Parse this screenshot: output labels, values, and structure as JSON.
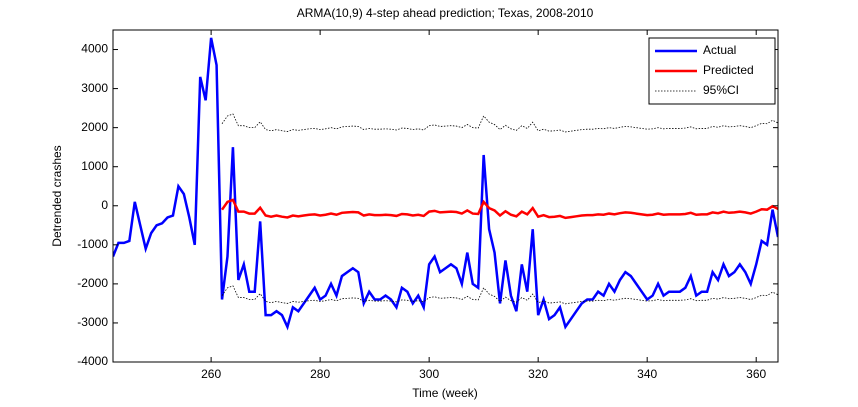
{
  "chart_data": {
    "type": "line",
    "title": "ARMA(10,9) 4-step ahead prediction; Texas, 2008-2010",
    "xlabel": "Time (week)",
    "ylabel": "Detrended crashes",
    "xlim": [
      242,
      364
    ],
    "ylim": [
      -4000,
      4500
    ],
    "xticks": [
      260,
      280,
      300,
      320,
      340,
      360
    ],
    "yticks": [
      -4000,
      -3000,
      -2000,
      -1000,
      0,
      1000,
      2000,
      3000,
      4000
    ],
    "legend": "northeast",
    "x": [
      242,
      243,
      244,
      245,
      246,
      247,
      248,
      249,
      250,
      251,
      252,
      253,
      254,
      255,
      256,
      257,
      258,
      259,
      260,
      261,
      262,
      263,
      264,
      265,
      266,
      267,
      268,
      269,
      270,
      271,
      272,
      273,
      274,
      275,
      276,
      277,
      278,
      279,
      280,
      281,
      282,
      283,
      284,
      285,
      286,
      287,
      288,
      289,
      290,
      291,
      292,
      293,
      294,
      295,
      296,
      297,
      298,
      299,
      300,
      301,
      302,
      303,
      304,
      305,
      306,
      307,
      308,
      309,
      310,
      311,
      312,
      313,
      314,
      315,
      316,
      317,
      318,
      319,
      320,
      321,
      322,
      323,
      324,
      325,
      326,
      327,
      328,
      329,
      330,
      331,
      332,
      333,
      334,
      335,
      336,
      337,
      338,
      339,
      340,
      341,
      342,
      343,
      344,
      345,
      346,
      347,
      348,
      349,
      350,
      351,
      352,
      353,
      354,
      355,
      356,
      357,
      358,
      359,
      360,
      361,
      362,
      363,
      364
    ],
    "series": [
      {
        "name": "Actual",
        "color": "#0000ff",
        "width": 2.5,
        "style": "solid",
        "values": [
          -1300,
          -950,
          -950,
          -900,
          100,
          -500,
          -1100,
          -700,
          -500,
          -450,
          -300,
          -250,
          500,
          300,
          -300,
          -1000,
          3300,
          2700,
          4300,
          3600,
          -2400,
          -1300,
          1500,
          -1900,
          -1500,
          -2200,
          -2200,
          -400,
          -2800,
          -2800,
          -2700,
          -2800,
          -3100,
          -2600,
          -2700,
          -2500,
          -2300,
          -2100,
          -2400,
          -2300,
          -2000,
          -2300,
          -1800,
          -1700,
          -1600,
          -1700,
          -2500,
          -2200,
          -2400,
          -2400,
          -2300,
          -2400,
          -2600,
          -2100,
          -2200,
          -2500,
          -2300,
          -2600,
          -1500,
          -1300,
          -1700,
          -1600,
          -1500,
          -1600,
          -2000,
          -1200,
          -2000,
          -2100,
          1300,
          -600,
          -1200,
          -2500,
          -1400,
          -2300,
          -2700,
          -1500,
          -2200,
          -600,
          -2800,
          -2400,
          -2900,
          -2800,
          -2600,
          -3100,
          -2900,
          -2700,
          -2500,
          -2400,
          -2400,
          -2200,
          -2300,
          -2000,
          -2200,
          -1900,
          -1700,
          -1800,
          -2000,
          -2200,
          -2400,
          -2300,
          -2000,
          -2300,
          -2200,
          -2200,
          -2200,
          -2100,
          -1800,
          -2300,
          -2200,
          -2200,
          -1700,
          -1900,
          -1500,
          -1800,
          -1700,
          -1500,
          -1700,
          -2000,
          -1500,
          -900,
          -1000,
          -100,
          -800
        ]
      },
      {
        "name": "Predicted",
        "color": "#ff0000",
        "width": 2.5,
        "style": "solid",
        "values": [
          null,
          null,
          null,
          null,
          null,
          null,
          null,
          null,
          null,
          null,
          null,
          null,
          null,
          null,
          null,
          null,
          null,
          null,
          null,
          null,
          -100,
          100,
          150,
          -150,
          -150,
          -200,
          -200,
          -50,
          -250,
          -280,
          -250,
          -280,
          -300,
          -250,
          -270,
          -250,
          -230,
          -220,
          -250,
          -230,
          -200,
          -230,
          -180,
          -170,
          -160,
          -170,
          -250,
          -220,
          -240,
          -240,
          -230,
          -240,
          -260,
          -210,
          -220,
          -250,
          -230,
          -260,
          -150,
          -130,
          -170,
          -160,
          -150,
          -160,
          -200,
          -120,
          -200,
          -210,
          100,
          -60,
          -120,
          -250,
          -140,
          -230,
          -270,
          -150,
          -220,
          -60,
          -280,
          -240,
          -290,
          -280,
          -260,
          -310,
          -290,
          -270,
          -250,
          -240,
          -240,
          -220,
          -230,
          -200,
          -220,
          -190,
          -170,
          -180,
          -200,
          -220,
          -240,
          -230,
          -200,
          -230,
          -220,
          -220,
          -220,
          -210,
          -180,
          -230,
          -220,
          -220,
          -170,
          -190,
          -150,
          -180,
          -170,
          -150,
          -170,
          -200,
          -150,
          -90,
          -100,
          -10,
          -80
        ]
      },
      {
        "name": "95%CI",
        "color": "#000000",
        "width": 0.8,
        "style": "dotted",
        "values": [
          null,
          null,
          null,
          null,
          null,
          null,
          null,
          null,
          null,
          null,
          null,
          null,
          null,
          null,
          null,
          null,
          null,
          null,
          null,
          null,
          2100,
          2300,
          2350,
          2050,
          2050,
          2000,
          2000,
          2150,
          1950,
          1920,
          1950,
          1920,
          1900,
          1950,
          1930,
          1950,
          1970,
          1980,
          1950,
          1970,
          2000,
          1970,
          2020,
          2030,
          2040,
          2030,
          1950,
          1980,
          1960,
          1960,
          1970,
          1960,
          1940,
          1990,
          1980,
          1950,
          1970,
          1940,
          2050,
          2070,
          2030,
          2040,
          2050,
          2040,
          2000,
          2080,
          2000,
          1990,
          2300,
          2140,
          2080,
          1950,
          2060,
          1970,
          1930,
          2050,
          1980,
          2140,
          1920,
          1960,
          1910,
          1920,
          1940,
          1890,
          1910,
          1930,
          1950,
          1960,
          1960,
          1980,
          1970,
          2000,
          1980,
          2010,
          2030,
          2020,
          2000,
          1980,
          1960,
          1970,
          2000,
          1970,
          1980,
          1980,
          1980,
          1990,
          2020,
          1970,
          1980,
          1980,
          2030,
          2010,
          2050,
          2020,
          2030,
          2050,
          2030,
          2000,
          2050,
          2110,
          2100,
          2190,
          2120
        ]
      },
      {
        "color": "#000000",
        "width": 0.8,
        "style": "dotted",
        "values": [
          null,
          null,
          null,
          null,
          null,
          null,
          null,
          null,
          null,
          null,
          null,
          null,
          null,
          null,
          null,
          null,
          null,
          null,
          null,
          null,
          -2300,
          -2100,
          -2050,
          -2350,
          -2350,
          -2400,
          -2400,
          -2250,
          -2450,
          -2480,
          -2450,
          -2480,
          -2500,
          -2450,
          -2470,
          -2450,
          -2430,
          -2420,
          -2450,
          -2430,
          -2400,
          -2430,
          -2380,
          -2370,
          -2360,
          -2370,
          -2450,
          -2420,
          -2440,
          -2440,
          -2430,
          -2440,
          -2460,
          -2410,
          -2420,
          -2450,
          -2430,
          -2460,
          -2350,
          -2330,
          -2370,
          -2360,
          -2350,
          -2360,
          -2400,
          -2320,
          -2400,
          -2410,
          -2100,
          -2260,
          -2320,
          -2450,
          -2340,
          -2430,
          -2470,
          -2350,
          -2420,
          -2260,
          -2480,
          -2440,
          -2490,
          -2480,
          -2460,
          -2510,
          -2490,
          -2470,
          -2450,
          -2440,
          -2440,
          -2420,
          -2430,
          -2400,
          -2420,
          -2390,
          -2370,
          -2380,
          -2400,
          -2420,
          -2440,
          -2430,
          -2400,
          -2430,
          -2420,
          -2420,
          -2420,
          -2410,
          -2380,
          -2430,
          -2420,
          -2420,
          -2370,
          -2390,
          -2350,
          -2380,
          -2370,
          -2350,
          -2370,
          -2400,
          -2350,
          -2290,
          -2300,
          -2210,
          -2280
        ]
      }
    ]
  }
}
